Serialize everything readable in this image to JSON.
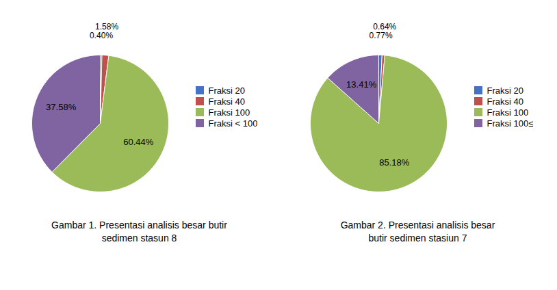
{
  "chart_data": [
    {
      "type": "pie",
      "title": "Gambar 1. Presentasi analisis besar butir",
      "subtitle": "sedimen stasun 8",
      "categories": [
        "Fraksi 20",
        "Fraksi 40",
        "Fraksi 100",
        "Fraksi < 100"
      ],
      "values": [
        0.4,
        1.58,
        60.44,
        37.58
      ],
      "value_labels": [
        "0.40%",
        "1.58%",
        "60.44%",
        "37.58%"
      ],
      "colors": [
        "#4472C4",
        "#C0504D",
        "#9BBB59",
        "#8064A2"
      ],
      "data_labels": true,
      "legend": "right"
    },
    {
      "type": "pie",
      "title": "Gambar 2. Presentasi analisis besar",
      "subtitle": "butir sedimen stasiun 7",
      "categories": [
        "Fraksi 20",
        "Fraksi 40",
        "Fraksi 100",
        "Fraksi 100≤"
      ],
      "values": [
        0.77,
        0.64,
        85.18,
        13.41
      ],
      "value_labels": [
        "0.77%",
        "0.64%",
        "85.18%",
        "13.41%"
      ],
      "colors": [
        "#4472C4",
        "#C0504D",
        "#9BBB59",
        "#8064A2"
      ],
      "data_labels": true,
      "legend": "right"
    }
  ]
}
